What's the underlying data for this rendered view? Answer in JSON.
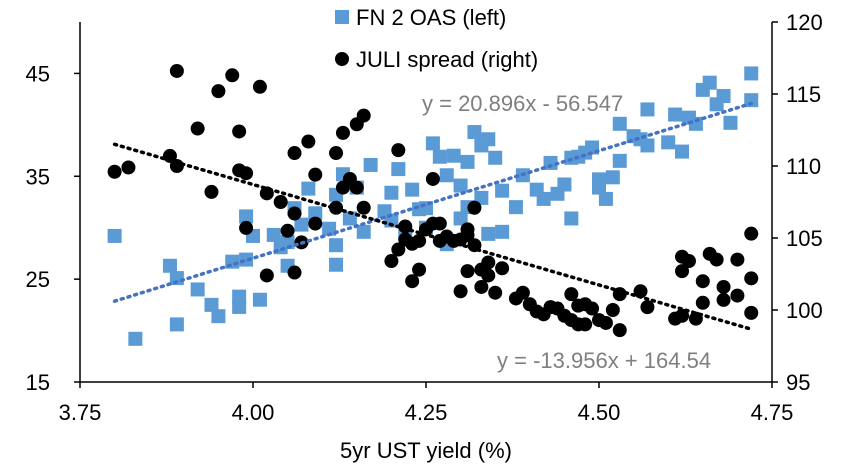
{
  "chart_data": {
    "type": "scatter",
    "title": "",
    "xlabel": "5yr UST yield (%)",
    "ylabel_left": "",
    "ylabel_right": "",
    "xlim": [
      3.75,
      4.75
    ],
    "ylim_left": [
      15,
      50
    ],
    "ylim_right": [
      95,
      120
    ],
    "x_ticks": [
      "3.75",
      "4.00",
      "4.25",
      "4.50",
      "4.75"
    ],
    "y_left_ticks": [
      "15",
      "25",
      "35",
      "45"
    ],
    "y_right_ticks": [
      "95",
      "100",
      "105",
      "110",
      "115",
      "120"
    ],
    "legend_position": "top-center",
    "colors": {
      "fn2": "#5b9bd5",
      "juli": "#000000",
      "fn2_trend": "#4472c4",
      "juli_trend": "#000000",
      "axis": "#000000",
      "eq_text": "#7f7f7f"
    },
    "series": [
      {
        "name": "FN 2 OAS (left)",
        "axis": "left",
        "marker": "square",
        "trendline": {
          "equation": "y = 20.896x - 56.547",
          "slope": 20.896,
          "intercept": -56.547
        },
        "points": [
          [
            3.8,
            29.2
          ],
          [
            3.83,
            19.2
          ],
          [
            3.88,
            26.3
          ],
          [
            3.89,
            20.6
          ],
          [
            3.89,
            25.1
          ],
          [
            3.92,
            24.0
          ],
          [
            3.94,
            22.5
          ],
          [
            3.95,
            21.4
          ],
          [
            3.97,
            26.7
          ],
          [
            3.98,
            23.3
          ],
          [
            3.98,
            22.3
          ],
          [
            3.99,
            31.1
          ],
          [
            3.99,
            26.9
          ],
          [
            4.0,
            29.2
          ],
          [
            4.01,
            23.0
          ],
          [
            4.03,
            29.3
          ],
          [
            4.04,
            28.1
          ],
          [
            4.05,
            26.3
          ],
          [
            4.05,
            28.6
          ],
          [
            4.06,
            31.9
          ],
          [
            4.07,
            30.3
          ],
          [
            4.08,
            33.8
          ],
          [
            4.09,
            31.4
          ],
          [
            4.11,
            29.9
          ],
          [
            4.12,
            26.4
          ],
          [
            4.12,
            28.3
          ],
          [
            4.12,
            33.2
          ],
          [
            4.13,
            35.2
          ],
          [
            4.14,
            30.9
          ],
          [
            4.15,
            33.9
          ],
          [
            4.16,
            29.6
          ],
          [
            4.17,
            36.1
          ],
          [
            4.19,
            31.6
          ],
          [
            4.2,
            33.4
          ],
          [
            4.2,
            30.7
          ],
          [
            4.21,
            35.7
          ],
          [
            4.22,
            29.5
          ],
          [
            4.23,
            33.7
          ],
          [
            4.24,
            31.8
          ],
          [
            4.25,
            31.9
          ],
          [
            4.25,
            30.0
          ],
          [
            4.26,
            38.2
          ],
          [
            4.27,
            36.9
          ],
          [
            4.28,
            28.4
          ],
          [
            4.28,
            35.1
          ],
          [
            4.29,
            37.0
          ],
          [
            4.3,
            30.9
          ],
          [
            4.3,
            34.1
          ],
          [
            4.31,
            36.4
          ],
          [
            4.31,
            32.0
          ],
          [
            4.32,
            39.3
          ],
          [
            4.33,
            38.0
          ],
          [
            4.33,
            32.9
          ],
          [
            4.34,
            29.4
          ],
          [
            4.34,
            38.6
          ],
          [
            4.35,
            36.8
          ],
          [
            4.36,
            29.6
          ],
          [
            4.36,
            33.6
          ],
          [
            4.38,
            32.0
          ],
          [
            4.39,
            35.1
          ],
          [
            4.41,
            33.7
          ],
          [
            4.42,
            32.8
          ],
          [
            4.43,
            36.3
          ],
          [
            4.44,
            33.3
          ],
          [
            4.45,
            34.2
          ],
          [
            4.46,
            30.9
          ],
          [
            4.46,
            36.8
          ],
          [
            4.47,
            36.9
          ],
          [
            4.48,
            37.3
          ],
          [
            4.49,
            37.8
          ],
          [
            4.5,
            33.9
          ],
          [
            4.5,
            34.7
          ],
          [
            4.51,
            32.8
          ],
          [
            4.52,
            34.9
          ],
          [
            4.53,
            40.1
          ],
          [
            4.53,
            36.5
          ],
          [
            4.55,
            38.9
          ],
          [
            4.56,
            38.6
          ],
          [
            4.57,
            41.5
          ],
          [
            4.57,
            38.0
          ],
          [
            4.6,
            38.3
          ],
          [
            4.61,
            41.0
          ],
          [
            4.62,
            37.4
          ],
          [
            4.63,
            40.7
          ],
          [
            4.64,
            40.1
          ],
          [
            4.65,
            43.4
          ],
          [
            4.66,
            44.1
          ],
          [
            4.67,
            42.0
          ],
          [
            4.68,
            42.8
          ],
          [
            4.69,
            40.2
          ],
          [
            4.72,
            45.0
          ],
          [
            4.72,
            42.4
          ]
        ]
      },
      {
        "name": "JULI spread (right)",
        "axis": "right",
        "marker": "circle",
        "trendline": {
          "equation": "y = -13.956x + 164.54",
          "slope": -13.956,
          "intercept": 164.54
        },
        "points": [
          [
            3.8,
            109.6
          ],
          [
            3.82,
            109.9
          ],
          [
            3.88,
            110.7
          ],
          [
            3.89,
            116.6
          ],
          [
            3.89,
            110.0
          ],
          [
            3.92,
            112.6
          ],
          [
            3.94,
            108.2
          ],
          [
            3.95,
            115.2
          ],
          [
            3.97,
            116.3
          ],
          [
            3.98,
            112.4
          ],
          [
            3.98,
            109.7
          ],
          [
            3.99,
            109.5
          ],
          [
            3.99,
            105.7
          ],
          [
            4.01,
            115.5
          ],
          [
            4.02,
            108.1
          ],
          [
            4.02,
            102.4
          ],
          [
            4.04,
            107.5
          ],
          [
            4.05,
            105.5
          ],
          [
            4.06,
            106.7
          ],
          [
            4.06,
            110.9
          ],
          [
            4.06,
            102.6
          ],
          [
            4.07,
            104.7
          ],
          [
            4.08,
            111.7
          ],
          [
            4.09,
            109.4
          ],
          [
            4.09,
            106.0
          ],
          [
            4.12,
            107.1
          ],
          [
            4.12,
            110.9
          ],
          [
            4.13,
            112.3
          ],
          [
            4.13,
            108.5
          ],
          [
            4.14,
            109.1
          ],
          [
            4.15,
            112.9
          ],
          [
            4.15,
            108.5
          ],
          [
            4.16,
            107.1
          ],
          [
            4.16,
            113.5
          ],
          [
            4.2,
            103.4
          ],
          [
            4.21,
            104.2
          ],
          [
            4.21,
            111.1
          ],
          [
            4.22,
            105.8
          ],
          [
            4.22,
            104.9
          ],
          [
            4.23,
            104.6
          ],
          [
            4.23,
            102.0
          ],
          [
            4.24,
            104.8
          ],
          [
            4.24,
            102.8
          ],
          [
            4.25,
            105.6
          ],
          [
            4.26,
            106.0
          ],
          [
            4.26,
            109.1
          ],
          [
            4.27,
            106.0
          ],
          [
            4.27,
            104.8
          ],
          [
            4.28,
            105.1
          ],
          [
            4.29,
            104.8
          ],
          [
            4.3,
            104.9
          ],
          [
            4.3,
            101.3
          ],
          [
            4.31,
            105.2
          ],
          [
            4.31,
            105.6
          ],
          [
            4.31,
            102.7
          ],
          [
            4.32,
            107.1
          ],
          [
            4.32,
            104.5
          ],
          [
            4.33,
            102.8
          ],
          [
            4.33,
            101.6
          ],
          [
            4.34,
            103.3
          ],
          [
            4.34,
            102.4
          ],
          [
            4.35,
            101.2
          ],
          [
            4.36,
            102.9
          ],
          [
            4.38,
            100.8
          ],
          [
            4.39,
            101.2
          ],
          [
            4.4,
            100.4
          ],
          [
            4.41,
            99.9
          ],
          [
            4.42,
            99.7
          ],
          [
            4.43,
            100.2
          ],
          [
            4.44,
            100.1
          ],
          [
            4.45,
            99.6
          ],
          [
            4.46,
            101.1
          ],
          [
            4.46,
            99.3
          ],
          [
            4.47,
            99.0
          ],
          [
            4.47,
            100.3
          ],
          [
            4.48,
            99.0
          ],
          [
            4.48,
            100.4
          ],
          [
            4.49,
            100.1
          ],
          [
            4.5,
            99.3
          ],
          [
            4.51,
            99.1
          ],
          [
            4.52,
            100.0
          ],
          [
            4.53,
            101.1
          ],
          [
            4.53,
            98.6
          ],
          [
            4.56,
            101.3
          ],
          [
            4.57,
            100.2
          ],
          [
            4.61,
            99.4
          ],
          [
            4.62,
            99.6
          ],
          [
            4.62,
            103.7
          ],
          [
            4.62,
            102.7
          ],
          [
            4.63,
            103.4
          ],
          [
            4.64,
            99.4
          ],
          [
            4.65,
            100.5
          ],
          [
            4.65,
            102.0
          ],
          [
            4.66,
            103.9
          ],
          [
            4.67,
            103.5
          ],
          [
            4.68,
            101.6
          ],
          [
            4.68,
            100.7
          ],
          [
            4.7,
            101.0
          ],
          [
            4.7,
            103.5
          ],
          [
            4.72,
            105.3
          ],
          [
            4.72,
            102.2
          ],
          [
            4.72,
            99.8
          ]
        ]
      }
    ]
  }
}
